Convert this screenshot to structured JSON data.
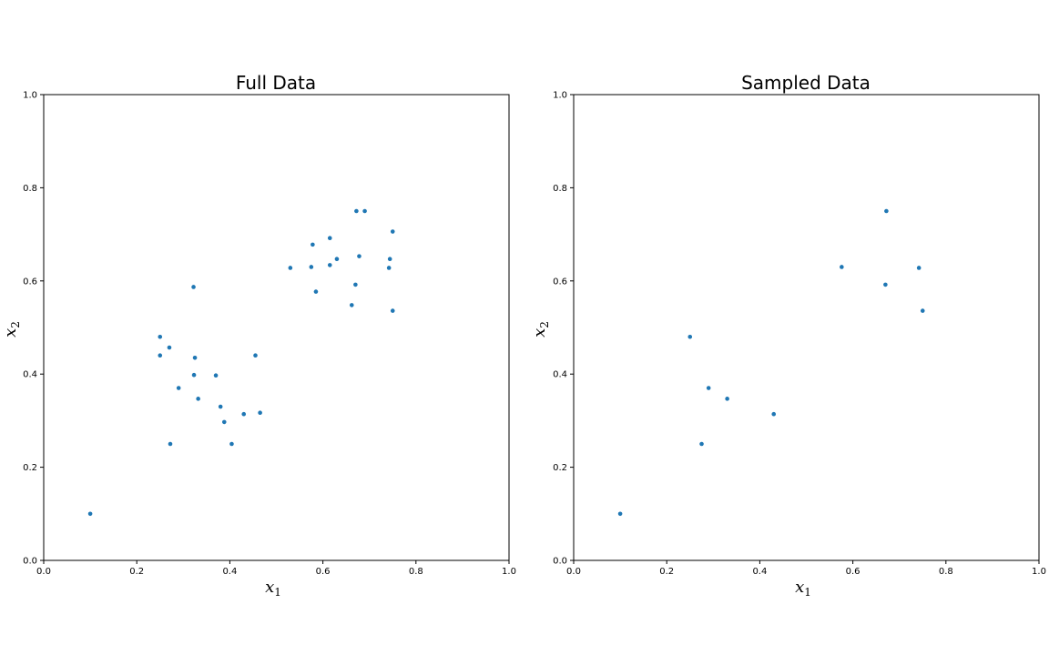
{
  "chart_data": [
    {
      "type": "scatter",
      "title": "Full Data",
      "xlabel": {
        "base": "x",
        "sub": "1"
      },
      "ylabel": {
        "base": "x",
        "sub": "2"
      },
      "xlim": [
        0,
        1
      ],
      "ylim": [
        0,
        1
      ],
      "xticks": [
        "0.0",
        "0.2",
        "0.4",
        "0.6",
        "0.8",
        "1.0"
      ],
      "yticks": [
        "0.0",
        "0.2",
        "0.4",
        "0.6",
        "0.8",
        "1.0"
      ],
      "grid": false,
      "color": "#1f77b4",
      "points": [
        {
          "x": 0.1,
          "y": 0.1
        },
        {
          "x": 0.25,
          "y": 0.48
        },
        {
          "x": 0.25,
          "y": 0.44
        },
        {
          "x": 0.27,
          "y": 0.457
        },
        {
          "x": 0.272,
          "y": 0.25
        },
        {
          "x": 0.29,
          "y": 0.37
        },
        {
          "x": 0.322,
          "y": 0.587
        },
        {
          "x": 0.325,
          "y": 0.435
        },
        {
          "x": 0.323,
          "y": 0.398
        },
        {
          "x": 0.332,
          "y": 0.347
        },
        {
          "x": 0.37,
          "y": 0.397
        },
        {
          "x": 0.38,
          "y": 0.33
        },
        {
          "x": 0.388,
          "y": 0.297
        },
        {
          "x": 0.404,
          "y": 0.25
        },
        {
          "x": 0.43,
          "y": 0.314
        },
        {
          "x": 0.455,
          "y": 0.44
        },
        {
          "x": 0.465,
          "y": 0.317
        },
        {
          "x": 0.53,
          "y": 0.628
        },
        {
          "x": 0.575,
          "y": 0.63
        },
        {
          "x": 0.578,
          "y": 0.678
        },
        {
          "x": 0.585,
          "y": 0.577
        },
        {
          "x": 0.615,
          "y": 0.692
        },
        {
          "x": 0.615,
          "y": 0.634
        },
        {
          "x": 0.63,
          "y": 0.647
        },
        {
          "x": 0.662,
          "y": 0.548
        },
        {
          "x": 0.67,
          "y": 0.592
        },
        {
          "x": 0.672,
          "y": 0.75
        },
        {
          "x": 0.678,
          "y": 0.653
        },
        {
          "x": 0.69,
          "y": 0.75
        },
        {
          "x": 0.742,
          "y": 0.628
        },
        {
          "x": 0.744,
          "y": 0.647
        },
        {
          "x": 0.75,
          "y": 0.706
        },
        {
          "x": 0.75,
          "y": 0.536
        }
      ]
    },
    {
      "type": "scatter",
      "title": "Sampled Data",
      "xlabel": {
        "base": "x",
        "sub": "1"
      },
      "ylabel": {
        "base": "x",
        "sub": "2"
      },
      "xlim": [
        0,
        1
      ],
      "ylim": [
        0,
        1
      ],
      "xticks": [
        "0.0",
        "0.2",
        "0.4",
        "0.6",
        "0.8",
        "1.0"
      ],
      "yticks": [
        "0.0",
        "0.2",
        "0.4",
        "0.6",
        "0.8",
        "1.0"
      ],
      "grid": false,
      "color": "#1f77b4",
      "points": [
        {
          "x": 0.1,
          "y": 0.1
        },
        {
          "x": 0.25,
          "y": 0.48
        },
        {
          "x": 0.275,
          "y": 0.25
        },
        {
          "x": 0.29,
          "y": 0.37
        },
        {
          "x": 0.33,
          "y": 0.347
        },
        {
          "x": 0.43,
          "y": 0.314
        },
        {
          "x": 0.576,
          "y": 0.63
        },
        {
          "x": 0.67,
          "y": 0.592
        },
        {
          "x": 0.672,
          "y": 0.75
        },
        {
          "x": 0.742,
          "y": 0.628
        },
        {
          "x": 0.75,
          "y": 0.536
        }
      ]
    }
  ]
}
